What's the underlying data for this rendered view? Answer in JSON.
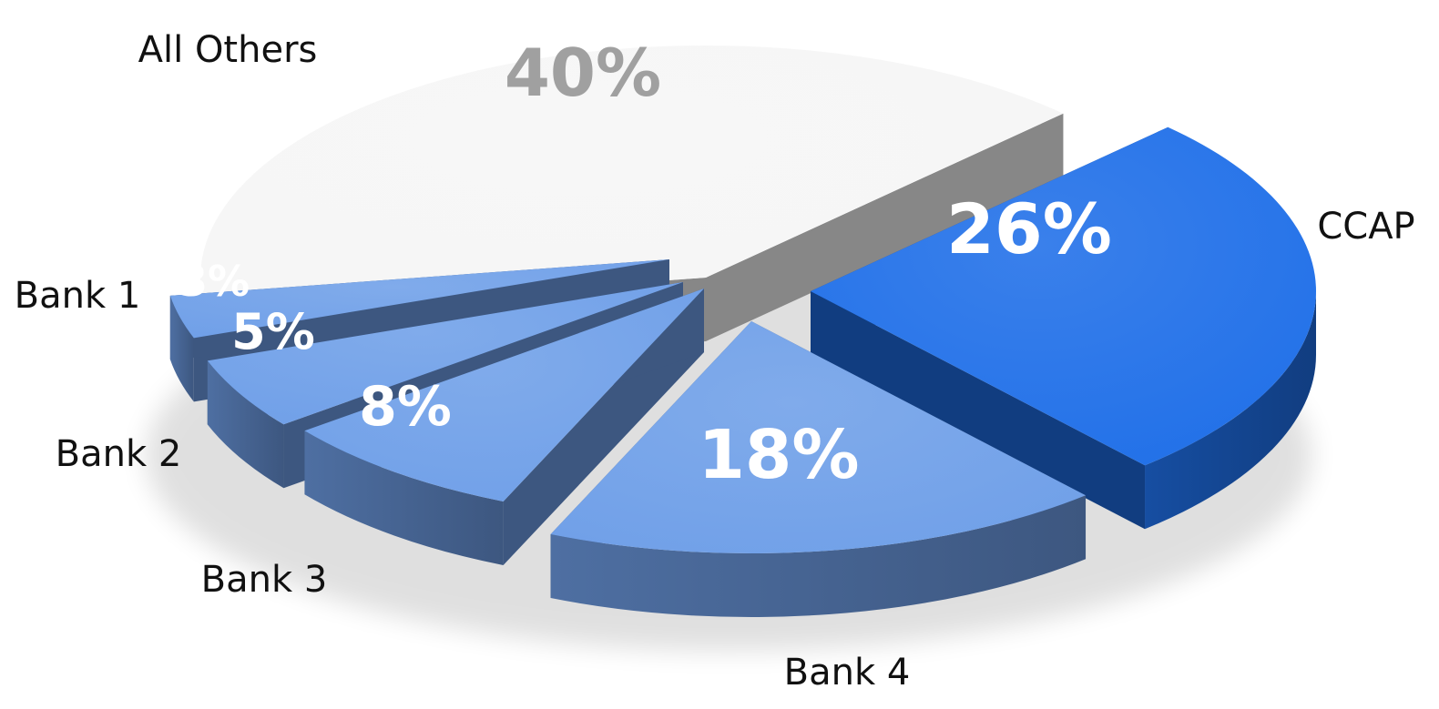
{
  "chart_data": {
    "type": "pie",
    "categories": [
      "CCAP",
      "Bank 4",
      "Bank 3",
      "Bank 2",
      "Bank 1",
      "All Others"
    ],
    "values": [
      26,
      18,
      8,
      5,
      3,
      40
    ],
    "value_labels": [
      "26%",
      "18%",
      "8%",
      "5%",
      "3%",
      "40%"
    ],
    "title": "",
    "three_d": true,
    "exploded": true,
    "colors": {
      "CCAP": "#1f6fe8",
      "Bank 4": "#6f9fe8",
      "Bank 3": "#6f9fe8",
      "Bank 2": "#6f9fe8",
      "Bank 1": "#6f9fe8",
      "All Others": "#f6f6f6"
    }
  }
}
